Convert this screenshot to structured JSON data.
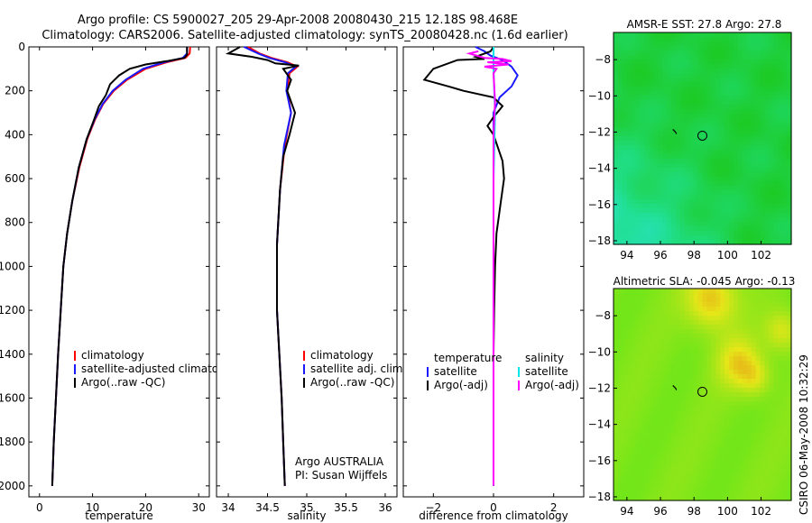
{
  "title_line1": "Argo profile: CS 5900027_205 29-Apr-2008 20080430_215 12.18S 98.468E",
  "title_line2": "Climatology: CARS2006. Satellite-adjusted climatology: synTS_20080428.nc (1.6d earlier)",
  "side_label": "CSIRO 06-May-2008 10:32:29",
  "colors": {
    "red": "#ff0000",
    "blue": "#1a1aff",
    "black": "#000000",
    "cyan": "#00e5e5",
    "magenta": "#ff00ff"
  },
  "chart_data": [
    {
      "type": "line",
      "xlabel": "temperature",
      "xlim": [
        -2,
        32
      ],
      "ylim": [
        2050,
        0
      ],
      "y_ticks": [
        0,
        200,
        400,
        600,
        800,
        1000,
        1200,
        1400,
        1600,
        1800,
        2000
      ],
      "x_ticks": [
        0,
        10,
        20,
        30
      ],
      "legend": [
        "climatology",
        "satellite-adjusted climatology",
        "Argo(..raw -QC)"
      ],
      "series": [
        {
          "name": "climatology",
          "color": "red",
          "points": [
            [
              28.4,
              0
            ],
            [
              28.3,
              30
            ],
            [
              27.5,
              50
            ],
            [
              24,
              70
            ],
            [
              20,
              100
            ],
            [
              16.5,
              150
            ],
            [
              14,
              200
            ],
            [
              12,
              260
            ],
            [
              10.5,
              330
            ],
            [
              9,
              420
            ],
            [
              7.5,
              550
            ],
            [
              6.2,
              700
            ],
            [
              5.2,
              850
            ],
            [
              4.5,
              1000
            ],
            [
              4,
              1200
            ],
            [
              3.5,
              1400
            ],
            [
              3.1,
              1600
            ],
            [
              2.7,
              1800
            ],
            [
              2.4,
              2000
            ]
          ]
        },
        {
          "name": "satellite-adjusted climatology",
          "color": "blue",
          "points": [
            [
              27.8,
              0
            ],
            [
              27.8,
              30
            ],
            [
              27,
              50
            ],
            [
              23.5,
              70
            ],
            [
              19.5,
              100
            ],
            [
              16.2,
              150
            ],
            [
              13.8,
              200
            ],
            [
              11.9,
              260
            ],
            [
              10.4,
              330
            ],
            [
              8.9,
              420
            ],
            [
              7.4,
              550
            ],
            [
              6.2,
              700
            ],
            [
              5.2,
              850
            ],
            [
              4.5,
              1000
            ],
            [
              4,
              1200
            ],
            [
              3.5,
              1400
            ],
            [
              3.1,
              1600
            ],
            [
              2.7,
              1800
            ],
            [
              2.4,
              2000
            ]
          ]
        },
        {
          "name": "Argo(..raw -QC)",
          "color": "black",
          "points": [
            [
              27.8,
              0
            ],
            [
              27.8,
              35
            ],
            [
              27.3,
              50
            ],
            [
              24,
              65
            ],
            [
              20,
              80
            ],
            [
              17,
              100
            ],
            [
              15,
              130
            ],
            [
              13.3,
              170
            ],
            [
              12.5,
              220
            ],
            [
              11.2,
              270
            ],
            [
              10.3,
              330
            ],
            [
              8.9,
              420
            ],
            [
              7.4,
              550
            ],
            [
              6.2,
              700
            ],
            [
              5.2,
              850
            ],
            [
              4.5,
              1000
            ],
            [
              4,
              1200
            ],
            [
              3.5,
              1400
            ],
            [
              3.1,
              1600
            ],
            [
              2.7,
              1800
            ],
            [
              2.4,
              2000
            ]
          ]
        }
      ]
    },
    {
      "type": "line",
      "xlabel": "salinity",
      "xlim": [
        33.85,
        36.15
      ],
      "ylim": [
        2050,
        0
      ],
      "x_ticks": [
        34,
        34.5,
        35,
        35.5,
        36
      ],
      "legend": [
        "climatology",
        "satellite adj. clim.",
        "Argo(..raw -QC)"
      ],
      "annotation": [
        "Argo AUSTRALIA",
        "PI: Susan Wijffels"
      ],
      "series": [
        {
          "name": "climatology",
          "color": "red",
          "points": [
            [
              34.25,
              0
            ],
            [
              34.4,
              30
            ],
            [
              34.55,
              50
            ],
            [
              34.75,
              70
            ],
            [
              34.88,
              90
            ],
            [
              34.78,
              120
            ],
            [
              34.75,
              200
            ],
            [
              34.8,
              300
            ],
            [
              34.72,
              450
            ],
            [
              34.66,
              650
            ],
            [
              34.62,
              900
            ],
            [
              34.62,
              1200
            ],
            [
              34.65,
              1400
            ],
            [
              34.68,
              1600
            ],
            [
              34.7,
              1800
            ],
            [
              34.72,
              2000
            ]
          ]
        },
        {
          "name": "satellite adj. clim.",
          "color": "blue",
          "points": [
            [
              34.2,
              0
            ],
            [
              34.38,
              30
            ],
            [
              34.52,
              50
            ],
            [
              34.72,
              70
            ],
            [
              34.86,
              90
            ],
            [
              34.76,
              120
            ],
            [
              34.74,
              200
            ],
            [
              34.8,
              300
            ],
            [
              34.71,
              450
            ],
            [
              34.66,
              650
            ],
            [
              34.62,
              900
            ],
            [
              34.62,
              1200
            ],
            [
              34.65,
              1400
            ],
            [
              34.68,
              1600
            ],
            [
              34.7,
              1800
            ],
            [
              34.72,
              2000
            ]
          ]
        },
        {
          "name": "Argo(..raw -QC)",
          "color": "black",
          "points": [
            [
              34.15,
              0
            ],
            [
              34.0,
              30
            ],
            [
              34.3,
              45
            ],
            [
              34.5,
              60
            ],
            [
              34.6,
              75
            ],
            [
              34.9,
              85
            ],
            [
              34.7,
              100
            ],
            [
              34.8,
              150
            ],
            [
              34.75,
              200
            ],
            [
              34.85,
              300
            ],
            [
              34.78,
              400
            ],
            [
              34.7,
              500
            ],
            [
              34.66,
              650
            ],
            [
              34.62,
              900
            ],
            [
              34.62,
              1200
            ],
            [
              34.65,
              1400
            ],
            [
              34.68,
              1600
            ],
            [
              34.7,
              1800
            ],
            [
              34.72,
              2000
            ]
          ]
        }
      ]
    },
    {
      "type": "line",
      "xlabel": "difference from climatology",
      "xlim": [
        -3,
        3
      ],
      "ylim": [
        2050,
        0
      ],
      "x_ticks": [
        -2,
        0,
        2
      ],
      "legend": [
        "temperature",
        "satellite",
        "Argo(-adj)",
        "salinity",
        "satellite",
        "Argo(-adj)"
      ],
      "series": [
        {
          "name": "temperature satellite",
          "color": "blue",
          "points": [
            [
              -0.6,
              0
            ],
            [
              -0.3,
              20
            ],
            [
              -0.1,
              40
            ],
            [
              0.2,
              55
            ],
            [
              0.4,
              70
            ],
            [
              0.6,
              90
            ],
            [
              0.8,
              130
            ],
            [
              0.6,
              180
            ],
            [
              0.2,
              230
            ],
            [
              0,
              300
            ],
            [
              0,
              600
            ],
            [
              0,
              2000
            ]
          ]
        },
        {
          "name": "temperature Argo(-adj)",
          "color": "black",
          "points": [
            [
              0,
              0
            ],
            [
              -0.1,
              20
            ],
            [
              -0.6,
              45
            ],
            [
              -0.3,
              55
            ],
            [
              -1.2,
              60
            ],
            [
              -2.0,
              100
            ],
            [
              -2.3,
              150
            ],
            [
              -1.5,
              180
            ],
            [
              -1.0,
              200
            ],
            [
              0,
              230
            ],
            [
              0.3,
              270
            ],
            [
              0,
              320
            ],
            [
              -0.2,
              360
            ],
            [
              0,
              400
            ],
            [
              0.3,
              520
            ],
            [
              0.35,
              600
            ],
            [
              0.25,
              700
            ],
            [
              0.1,
              850
            ],
            [
              0.05,
              1000
            ],
            [
              0.02,
              1200
            ],
            [
              0,
              1400
            ],
            [
              0,
              2000
            ]
          ]
        },
        {
          "name": "salinity satellite",
          "color": "cyan",
          "points": [
            [
              0,
              0
            ],
            [
              0,
              100
            ],
            [
              0.05,
              300
            ],
            [
              0,
              600
            ],
            [
              0,
              1000
            ],
            [
              0,
              2000
            ]
          ]
        },
        {
          "name": "salinity Argo(-adj)",
          "color": "magenta",
          "points": [
            [
              -0.5,
              20
            ],
            [
              -0.8,
              30
            ],
            [
              -0.3,
              50
            ],
            [
              0.3,
              55
            ],
            [
              0.6,
              65
            ],
            [
              -0.2,
              70
            ],
            [
              0.5,
              80
            ],
            [
              -0.3,
              90
            ],
            [
              0.1,
              100
            ],
            [
              0,
              120
            ],
            [
              0.05,
              250
            ],
            [
              0,
              400
            ],
            [
              0,
              2000
            ]
          ]
        }
      ]
    },
    {
      "type": "heatmap",
      "title": "AMSR-E SST: 27.8 Argo: 27.8",
      "x_ticks": [
        94,
        96,
        98,
        100,
        102
      ],
      "y_ticks": [
        -8,
        -10,
        -12,
        -14,
        -16,
        -18
      ],
      "xlim": [
        93.2,
        103.8
      ],
      "ylim": [
        -18.2,
        -6.5
      ],
      "marker": [
        98.5,
        -12.2
      ]
    },
    {
      "type": "heatmap",
      "title": "Altimetric SLA: -0.045 Argo: -0.13",
      "x_ticks": [
        94,
        96,
        98,
        100,
        102
      ],
      "y_ticks": [
        -8,
        -10,
        -12,
        -14,
        -16,
        -18
      ],
      "xlim": [
        93.2,
        103.8
      ],
      "ylim": [
        -18.2,
        -6.5
      ],
      "marker": [
        98.5,
        -12.2
      ]
    }
  ]
}
